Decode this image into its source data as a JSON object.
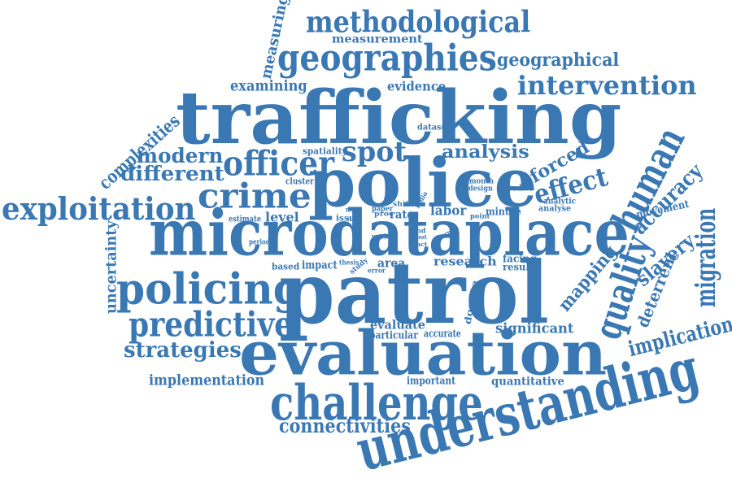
{
  "color": "#3a78b3",
  "words": [
    {
      "text": "trafficking"
    },
    {
      "text": "patrol"
    },
    {
      "text": "police"
    },
    {
      "text": "evaluation"
    },
    {
      "text": "microdataplace"
    },
    {
      "text": "understanding"
    },
    {
      "text": "challenge"
    },
    {
      "text": "policing"
    },
    {
      "text": "geographies"
    },
    {
      "text": "methodological"
    },
    {
      "text": "exploitation"
    },
    {
      "text": "crime"
    },
    {
      "text": "human"
    },
    {
      "text": "quality"
    },
    {
      "text": "predictive"
    },
    {
      "text": "intervention"
    },
    {
      "text": "officer"
    },
    {
      "text": "spot"
    },
    {
      "text": "migration"
    },
    {
      "text": "effect"
    },
    {
      "text": "strategies"
    },
    {
      "text": "connectivities"
    },
    {
      "text": "implication"
    },
    {
      "text": "slavery"
    },
    {
      "text": "accuracy"
    },
    {
      "text": "modern"
    },
    {
      "text": "different"
    },
    {
      "text": "analysis"
    },
    {
      "text": "forced"
    },
    {
      "text": "geographical"
    },
    {
      "text": "complexities"
    },
    {
      "text": "mapping"
    },
    {
      "text": "deterrent"
    },
    {
      "text": "uncertainty"
    },
    {
      "text": "measuring"
    },
    {
      "text": "examining"
    },
    {
      "text": "evidence"
    },
    {
      "text": "implementation"
    },
    {
      "text": "significant"
    },
    {
      "text": "level"
    },
    {
      "text": "measurement"
    },
    {
      "text": "research"
    },
    {
      "text": "labor"
    },
    {
      "text": "quantitative"
    },
    {
      "text": "evaluate"
    },
    {
      "text": "important"
    },
    {
      "text": "area"
    },
    {
      "text": "impact"
    },
    {
      "text": "particular"
    },
    {
      "text": "accurate"
    },
    {
      "text": "movement"
    },
    {
      "text": "rate"
    },
    {
      "text": "minute"
    },
    {
      "text": "facing"
    },
    {
      "text": "result"
    },
    {
      "text": "dosage"
    },
    {
      "text": "spatiality"
    },
    {
      "text": "cluster"
    },
    {
      "text": "estimate"
    },
    {
      "text": "period"
    },
    {
      "text": "based"
    },
    {
      "text": "dataset"
    },
    {
      "text": "analytic"
    },
    {
      "text": "analyse"
    },
    {
      "text": "studies"
    },
    {
      "text": "month"
    },
    {
      "text": "design"
    },
    {
      "text": "issue"
    },
    {
      "text": "paper"
    },
    {
      "text": "proc"
    },
    {
      "text": "shift"
    },
    {
      "text": "most"
    },
    {
      "text": "time"
    },
    {
      "text": "work"
    },
    {
      "text": "point"
    },
    {
      "text": "radio"
    },
    {
      "text": "foot"
    },
    {
      "text": "fact"
    },
    {
      "text": "more"
    },
    {
      "text": "thesis"
    },
    {
      "text": "study"
    },
    {
      "text": "error"
    },
    {
      "text": "find"
    }
  ]
}
